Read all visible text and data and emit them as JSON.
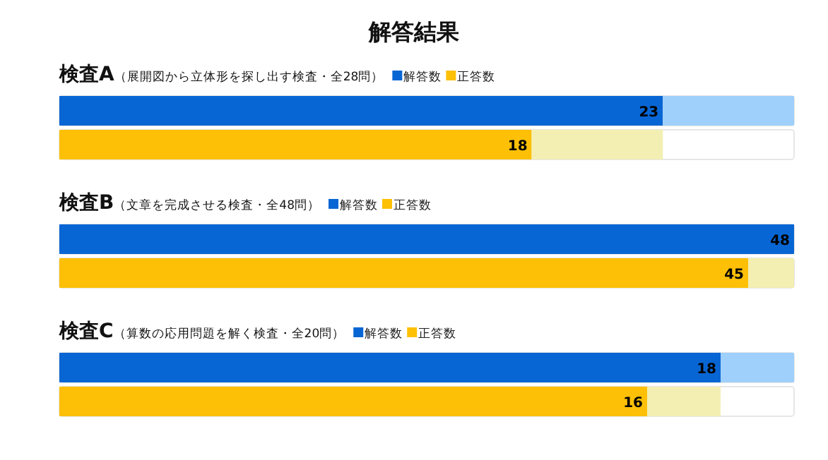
{
  "chart_data": [
    {
      "type": "bar",
      "orientation": "horizontal",
      "stacked": true,
      "title": "解答結果",
      "subtitle": "**検査A**（展開図から立体形を探し出す検査・全28問）",
      "legend": "top",
      "categories": [
        null,
        null
      ],
      "xlim": [
        0,
        28
      ],
      "series": [
        {
          "name": "解答数",
          "color": "#0866d4",
          "values": [
            23,
            null
          ],
          "value_labels": [
            "23",
            null
          ]
        },
        {
          "name": "正答数",
          "color": "#fdc007",
          "values": [
            null,
            18
          ],
          "value_labels": [
            null,
            "18"
          ]
        },
        {
          "color": "#9fd0fb",
          "values": [
            5,
            null
          ]
        },
        {
          "color": "#f3efb3",
          "values": [
            null,
            5
          ]
        }
      ]
    },
    {
      "type": "bar",
      "orientation": "horizontal",
      "stacked": true,
      "subtitle": "**検査B**（文章を完成させる検査・全48問）",
      "legend": "top",
      "categories": [
        null,
        null
      ],
      "xlim": [
        0,
        48
      ],
      "series": [
        {
          "name": "解答数",
          "color": "#0866d4",
          "values": [
            48,
            null
          ],
          "value_labels": [
            "48",
            null
          ]
        },
        {
          "name": "正答数",
          "color": "#fdc007",
          "values": [
            null,
            45
          ],
          "value_labels": [
            null,
            "45"
          ]
        },
        {
          "color": "#9fd0fb",
          "values": [
            0,
            null
          ]
        },
        {
          "color": "#f3efb3",
          "values": [
            null,
            3
          ]
        }
      ]
    },
    {
      "type": "bar",
      "orientation": "horizontal",
      "stacked": true,
      "subtitle": "**検査C**（算数の応用問題を解く検査・全20問）",
      "legend": "top",
      "categories": [
        null,
        null
      ],
      "xlim": [
        0,
        20
      ],
      "series": [
        {
          "name": "解答数",
          "color": "#0866d4",
          "values": [
            18,
            null
          ],
          "value_labels": [
            "18",
            null
          ]
        },
        {
          "name": "正答数",
          "color": "#fdc007",
          "values": [
            null,
            16
          ],
          "value_labels": [
            null,
            "16"
          ]
        },
        {
          "color": "#9fd0fb",
          "values": [
            2,
            null
          ]
        },
        {
          "color": "#f3efb3",
          "values": [
            null,
            2
          ]
        }
      ]
    }
  ]
}
